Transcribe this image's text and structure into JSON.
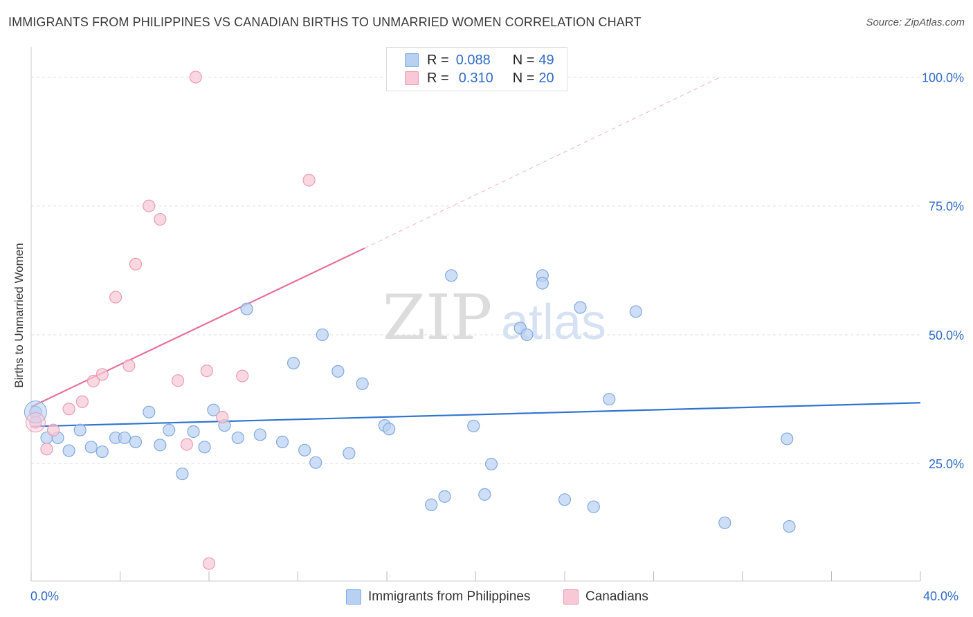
{
  "title": "IMMIGRANTS FROM PHILIPPINES VS CANADIAN BIRTHS TO UNMARRIED WOMEN CORRELATION CHART",
  "source": "Source: ZipAtlas.com",
  "watermark": {
    "zip": "ZIP",
    "atlas": "atlas"
  },
  "legend": {
    "series": [
      {
        "r_label": "R =",
        "r_value": "0.088",
        "n_label": "N =",
        "n_value": "49"
      },
      {
        "r_label": "R =",
        "r_value": "0.310",
        "n_label": "N =",
        "n_value": "20"
      }
    ]
  },
  "colors": {
    "blue_fill": "#b8d0f2",
    "blue_stroke": "#7faae0",
    "blue_line": "#2f74d0",
    "pink_fill": "#f8c8d6",
    "pink_stroke": "#ec9ab3",
    "pink_line": "#e8709a",
    "axis_text": "#2f6bc6",
    "grid": "#dddddd"
  },
  "chart_data": {
    "type": "scatter",
    "title": "IMMIGRANTS FROM PHILIPPINES VS CANADIAN BIRTHS TO UNMARRIED WOMEN CORRELATION CHART",
    "xlabel": "",
    "ylabel": "Births to Unmarried Women",
    "xlim": [
      0,
      40
    ],
    "ylim": [
      2.2,
      104.5
    ],
    "x_tick_labels": [
      "0.0%",
      "40.0%"
    ],
    "y_ticks": [
      25,
      50,
      75,
      100
    ],
    "y_tick_labels": [
      "25.0%",
      "50.0%",
      "75.0%",
      "100.0%"
    ],
    "grid": true,
    "legend_position": "top-center",
    "series": [
      {
        "name": "Immigrants from Philippines",
        "color": "#7faae0",
        "points": [
          [
            0.2,
            35.0
          ],
          [
            0.7,
            30.0
          ],
          [
            1.2,
            30.0
          ],
          [
            1.7,
            27.5
          ],
          [
            2.2,
            31.5
          ],
          [
            2.7,
            28.2
          ],
          [
            3.2,
            27.3
          ],
          [
            3.8,
            30.0
          ],
          [
            4.2,
            30.0
          ],
          [
            4.7,
            29.2
          ],
          [
            5.3,
            35.0
          ],
          [
            5.8,
            28.6
          ],
          [
            6.2,
            31.5
          ],
          [
            6.8,
            23.0
          ],
          [
            7.3,
            31.2
          ],
          [
            7.8,
            28.2
          ],
          [
            8.2,
            35.4
          ],
          [
            8.7,
            32.4
          ],
          [
            9.3,
            30.0
          ],
          [
            9.7,
            55.0
          ],
          [
            10.3,
            30.6
          ],
          [
            11.3,
            29.2
          ],
          [
            11.8,
            44.5
          ],
          [
            12.3,
            27.6
          ],
          [
            12.8,
            25.2
          ],
          [
            13.1,
            50.0
          ],
          [
            13.8,
            42.9
          ],
          [
            14.3,
            27.0
          ],
          [
            14.9,
            40.5
          ],
          [
            15.9,
            32.4
          ],
          [
            16.1,
            31.7
          ],
          [
            18.0,
            17.0
          ],
          [
            18.6,
            18.6
          ],
          [
            18.9,
            61.5
          ],
          [
            19.9,
            32.3
          ],
          [
            20.4,
            19.0
          ],
          [
            20.7,
            24.9
          ],
          [
            22.0,
            51.3
          ],
          [
            22.3,
            50.0
          ],
          [
            23.0,
            61.5
          ],
          [
            23.0,
            60.0
          ],
          [
            24.0,
            18.0
          ],
          [
            24.7,
            55.3
          ],
          [
            25.3,
            16.6
          ],
          [
            26.0,
            37.5
          ],
          [
            27.2,
            54.5
          ],
          [
            31.2,
            13.5
          ],
          [
            34.0,
            29.8
          ],
          [
            34.1,
            12.8
          ]
        ]
      },
      {
        "name": "Canadians",
        "color": "#ec9ab3",
        "points": [
          [
            0.2,
            33.0
          ],
          [
            1.0,
            31.5
          ],
          [
            0.7,
            27.8
          ],
          [
            1.7,
            35.6
          ],
          [
            2.3,
            37.0
          ],
          [
            2.8,
            41.0
          ],
          [
            3.2,
            42.3
          ],
          [
            3.8,
            57.3
          ],
          [
            4.4,
            44.0
          ],
          [
            4.7,
            63.7
          ],
          [
            5.3,
            75.0
          ],
          [
            5.8,
            72.4
          ],
          [
            6.6,
            41.1
          ],
          [
            7.0,
            28.7
          ],
          [
            7.4,
            100.0
          ],
          [
            7.9,
            43.0
          ],
          [
            8.0,
            5.6
          ],
          [
            8.6,
            34.0
          ],
          [
            9.5,
            42.0
          ],
          [
            12.5,
            80.0
          ]
        ]
      }
    ],
    "trend_lines": [
      {
        "series": "Immigrants from Philippines",
        "x": [
          0,
          40
        ],
        "y": [
          32.2,
          36.8
        ]
      },
      {
        "series": "Canadians",
        "x": [
          0,
          15
        ],
        "y": [
          36.0,
          66.8
        ],
        "extended_to": [
          31,
          100
        ]
      }
    ]
  },
  "bottom_legend": [
    "Immigrants from Philippines",
    "Canadians"
  ]
}
